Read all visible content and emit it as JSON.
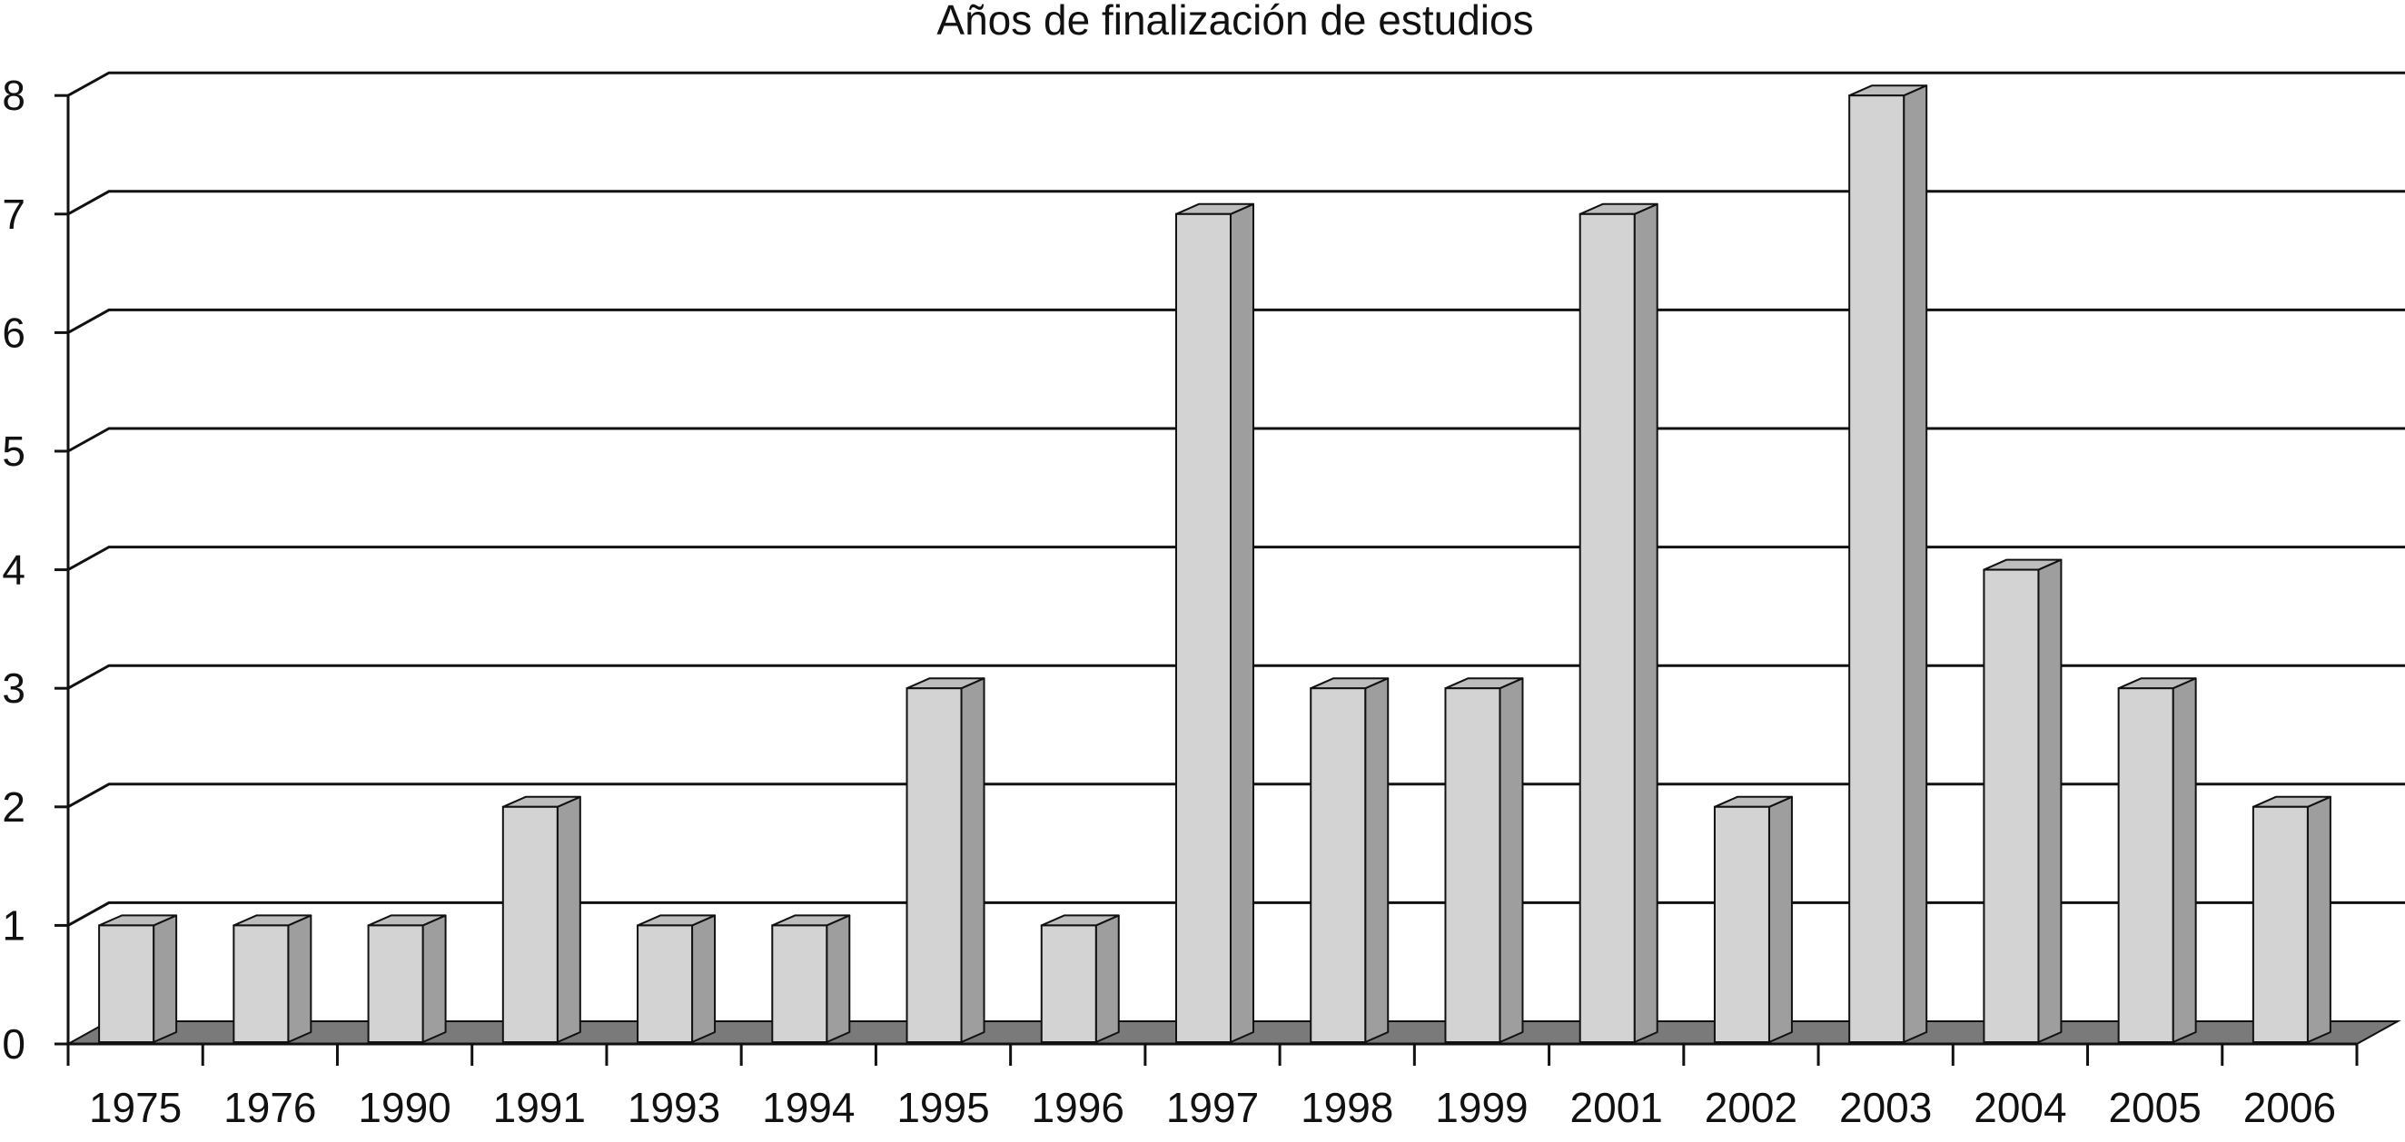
{
  "chart_data": {
    "type": "bar",
    "title": "Años de finalización de estudios",
    "xlabel": "",
    "ylabel": "",
    "categories": [
      "1975",
      "1976",
      "1990",
      "1991",
      "1993",
      "1994",
      "1995",
      "1996",
      "1997",
      "1998",
      "1999",
      "2001",
      "2002",
      "2003",
      "2004",
      "2005",
      "2006"
    ],
    "values": [
      1,
      1,
      1,
      2,
      1,
      1,
      3,
      1,
      7,
      3,
      3,
      7,
      2,
      8,
      4,
      3,
      2
    ],
    "ylim": [
      0,
      8
    ],
    "yticks": [
      "0",
      "1",
      "2",
      "3",
      "4",
      "5",
      "6",
      "7",
      "8"
    ],
    "grid": true,
    "legend": "none",
    "style": "3d-column",
    "colors": {
      "bar_front": "#d3d3d3",
      "bar_side": "#9e9e9e",
      "bar_top": "#bdbdbd",
      "floor": "#7a7a7a",
      "outline": "#111111",
      "grid": "#111111"
    }
  }
}
